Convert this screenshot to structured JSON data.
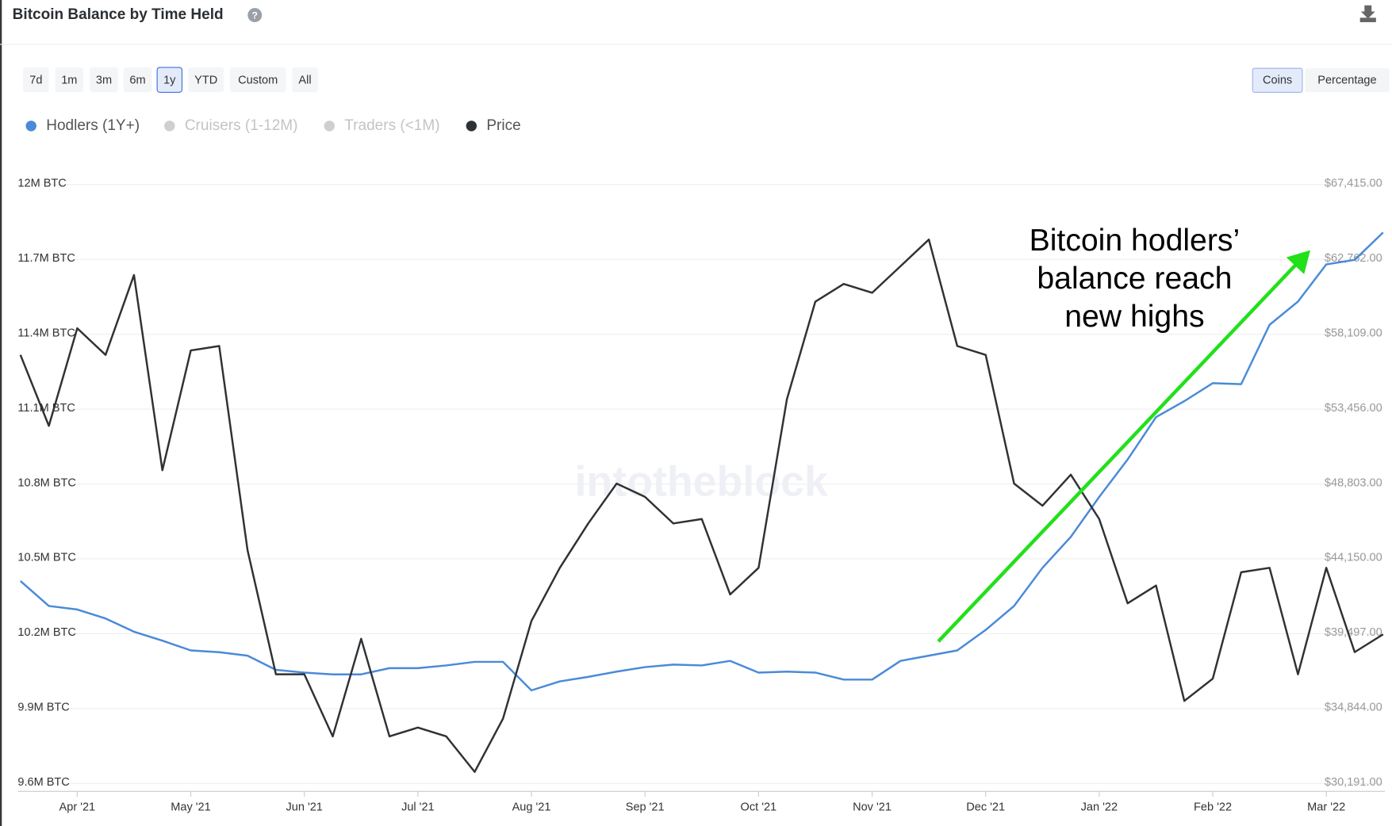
{
  "header": {
    "title": "Bitcoin Balance by Time Held",
    "ranges": [
      "7d",
      "1m",
      "3m",
      "6m",
      "1y",
      "YTD",
      "Custom",
      "All"
    ],
    "active_range": "1y",
    "units": [
      "Coins",
      "Percentage"
    ],
    "active_unit": "Coins"
  },
  "chart_data": {
    "type": "line",
    "categories": [
      null,
      null,
      "Apr '21",
      null,
      null,
      null,
      "May '21",
      null,
      null,
      null,
      "Jun '21",
      null,
      null,
      null,
      "Jul '21",
      null,
      null,
      null,
      "Aug '21",
      null,
      null,
      null,
      "Sep '21",
      null,
      null,
      null,
      "Oct '21",
      null,
      null,
      null,
      "Nov '21",
      null,
      null,
      null,
      "Dec '21",
      null,
      null,
      null,
      "Jan '22",
      null,
      null,
      null,
      "Feb '22",
      null,
      null,
      null,
      "Mar '22",
      null,
      null
    ],
    "series": [
      {
        "name": "Hodlers (1Y+)",
        "color": "#4a8ad8",
        "axis": "y",
        "values": [
          10411000,
          10311000,
          10297000,
          10261000,
          10208000,
          10172000,
          10133000,
          10126000,
          10112000,
          10055000,
          10044000,
          10037000,
          10037000,
          10062000,
          10062000,
          10073000,
          10087000,
          10087000,
          9973000,
          10009000,
          10027000,
          10048000,
          10066000,
          10076000,
          10073000,
          10091000,
          10044000,
          10048000,
          10044000,
          10016000,
          10016000,
          10091000,
          10112000,
          10133000,
          10215000,
          10311000,
          10464000,
          10588000,
          10748000,
          10898000,
          11068000,
          11132000,
          11204000,
          11200000,
          11438000,
          11531000,
          11680000,
          11698000,
          11808000
        ]
      },
      {
        "name": "Price",
        "color": "#2f3235",
        "axis": "y2",
        "values": [
          56827,
          52415,
          58481,
          56827,
          61790,
          49658,
          57103,
          57378,
          44694,
          36974,
          36974,
          33114,
          39180,
          33114,
          33665,
          33114,
          30908,
          34217,
          40283,
          43591,
          46349,
          48830,
          48003,
          46349,
          46625,
          41937,
          43591,
          54069,
          60136,
          61239,
          60687,
          62341,
          63996,
          57378,
          56827,
          48830,
          47452,
          49382,
          46625,
          41386,
          42489,
          35319,
          36698,
          43316,
          43591,
          36974,
          43591,
          38353,
          39455
        ]
      }
    ],
    "hidden_series": [
      {
        "name": "Cruisers (1-12M)",
        "color": "#cfcfcf"
      },
      {
        "name": "Traders (<1M)",
        "color": "#cfcfcf"
      }
    ],
    "ylim": [
      9600000,
      12000000
    ],
    "yticks": [
      {
        "value": 9600000,
        "label": "9.6M BTC"
      },
      {
        "value": 9900000,
        "label": "9.9M BTC"
      },
      {
        "value": 10200000,
        "label": "10.2M BTC"
      },
      {
        "value": 10500000,
        "label": "10.5M BTC"
      },
      {
        "value": 10800000,
        "label": "10.8M BTC"
      },
      {
        "value": 11100000,
        "label": "11.1M BTC"
      },
      {
        "value": 11400000,
        "label": "11.4M BTC"
      },
      {
        "value": 11700000,
        "label": "11.7M BTC"
      },
      {
        "value": 12000000,
        "label": "12M BTC"
      }
    ],
    "y2lim": [
      30191,
      67415
    ],
    "y2ticks": [
      {
        "value": 30191,
        "label": "$30,191.00"
      },
      {
        "value": 34844,
        "label": "$34,844.00"
      },
      {
        "value": 39497,
        "label": "$39,497.00"
      },
      {
        "value": 44150,
        "label": "$44,150.00"
      },
      {
        "value": 48803,
        "label": "$48,803.00"
      },
      {
        "value": 53456,
        "label": "$53,456.00"
      },
      {
        "value": 58109,
        "label": "$58,109.00"
      },
      {
        "value": 62762,
        "label": "$62,762.00"
      },
      {
        "value": 67415,
        "label": "$67,415.00"
      }
    ],
    "grid": true,
    "watermark": "intotheblock",
    "annotation": {
      "lines": [
        "Bitcoin hodlers’",
        "balance reach",
        "new highs"
      ],
      "color": "#22e01a"
    }
  }
}
